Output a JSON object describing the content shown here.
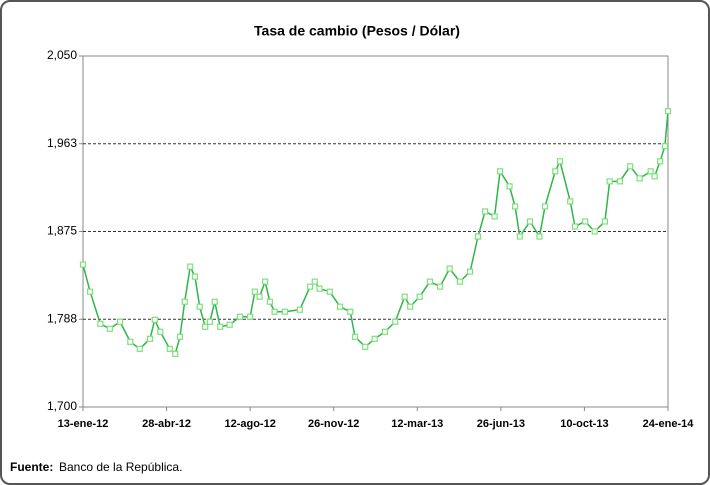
{
  "chart_data": {
    "type": "line",
    "title": "Tasa de cambio (Pesos / Dólar)",
    "source_label": "Fuente:",
    "source": "Banco de la República.",
    "color": "#2fb54a",
    "marker_color": "#7ee07c",
    "grid": true,
    "x": [
      "2012-01-13",
      "2012-01-22",
      "2012-02-04",
      "2012-02-16",
      "2012-02-29",
      "2012-03-13",
      "2012-03-25",
      "2012-04-07",
      "2012-04-13",
      "2012-04-20",
      "2012-05-02",
      "2012-05-09",
      "2012-05-15",
      "2012-05-21",
      "2012-05-28",
      "2012-06-03",
      "2012-06-09",
      "2012-06-16",
      "2012-06-22",
      "2012-06-28",
      "2012-07-05",
      "2012-07-17",
      "2012-07-30",
      "2012-08-12",
      "2012-08-18",
      "2012-08-24",
      "2012-08-31",
      "2012-09-06",
      "2012-09-12",
      "2012-09-25",
      "2012-10-14",
      "2012-10-27",
      "2012-11-02",
      "2012-11-08",
      "2012-11-21",
      "2012-12-04",
      "2012-12-17",
      "2012-12-23",
      "2013-01-05",
      "2013-01-17",
      "2013-01-30",
      "2013-02-12",
      "2013-02-24",
      "2013-03-03",
      "2013-03-15",
      "2013-03-28",
      "2013-04-10",
      "2013-04-22",
      "2013-05-05",
      "2013-05-18",
      "2013-05-28",
      "2013-06-06",
      "2013-06-18",
      "2013-06-25",
      "2013-07-07",
      "2013-07-14",
      "2013-07-20",
      "2013-08-02",
      "2013-08-14",
      "2013-08-21",
      "2013-09-03",
      "2013-09-09",
      "2013-09-22",
      "2013-09-28",
      "2013-10-11",
      "2013-10-23",
      "2013-11-05",
      "2013-11-11",
      "2013-11-24",
      "2013-12-07",
      "2013-12-19",
      "2014-01-02",
      "2014-01-07",
      "2014-01-14",
      "2014-01-20",
      "2014-01-24"
    ],
    "values": [
      1842,
      1815,
      1783,
      1778,
      1785,
      1765,
      1758,
      1768,
      1787,
      1775,
      1758,
      1753,
      1770,
      1805,
      1840,
      1830,
      1800,
      1780,
      1785,
      1805,
      1780,
      1782,
      1790,
      1790,
      1815,
      1810,
      1825,
      1805,
      1795,
      1795,
      1797,
      1820,
      1825,
      1818,
      1815,
      1800,
      1795,
      1770,
      1760,
      1768,
      1775,
      1785,
      1810,
      1800,
      1810,
      1825,
      1820,
      1838,
      1825,
      1835,
      1870,
      1895,
      1890,
      1935,
      1920,
      1900,
      1870,
      1885,
      1870,
      1900,
      1935,
      1945,
      1905,
      1880,
      1885,
      1875,
      1885,
      1925,
      1925,
      1940,
      1928,
      1935,
      1930,
      1945,
      1960,
      1995
    ],
    "xlim": [
      "2012-01-13",
      "2014-01-24"
    ],
    "xticks": [
      {
        "value": "2012-01-13",
        "label": "13-ene-12"
      },
      {
        "value": "2012-04-28",
        "label": "28-abr-12"
      },
      {
        "value": "2012-08-12",
        "label": "12-ago-12"
      },
      {
        "value": "2012-11-26",
        "label": "26-nov-12"
      },
      {
        "value": "2013-03-12",
        "label": "12-mar-13"
      },
      {
        "value": "2013-06-26",
        "label": "26-jun-13"
      },
      {
        "value": "2013-10-10",
        "label": "10-oct-13"
      },
      {
        "value": "2014-01-24",
        "label": "24-ene-14"
      }
    ],
    "ylim": [
      1700,
      2050
    ],
    "yticks": [
      {
        "value": 1700,
        "label": "1,700"
      },
      {
        "value": 1787.5,
        "label": "1,788"
      },
      {
        "value": 1875,
        "label": "1,875"
      },
      {
        "value": 1962.5,
        "label": "1,963"
      },
      {
        "value": 2050,
        "label": "2,050"
      }
    ]
  }
}
